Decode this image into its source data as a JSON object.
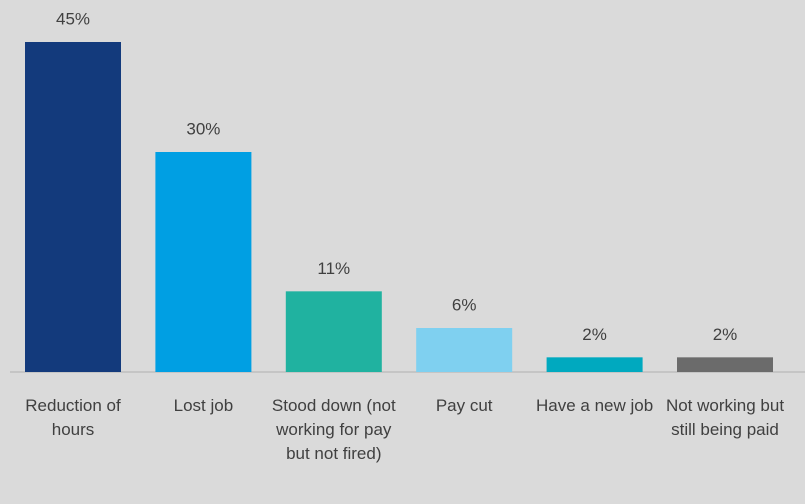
{
  "chart_data": {
    "type": "bar",
    "categories": [
      "Reduction of hours",
      "Lost job",
      "Stood down (not working for pay but not fired)",
      "Pay cut",
      "Have a new job",
      "Not working but still being paid"
    ],
    "values": [
      45,
      30,
      11,
      6,
      2,
      2
    ],
    "value_labels": [
      "45%",
      "30%",
      "11%",
      "6%",
      "2%",
      "2%"
    ],
    "colors": [
      "#133a7c",
      "#009fe3",
      "#20b2a0",
      "#7fd0f0",
      "#00a9bf",
      "#6b6b6b"
    ]
  }
}
